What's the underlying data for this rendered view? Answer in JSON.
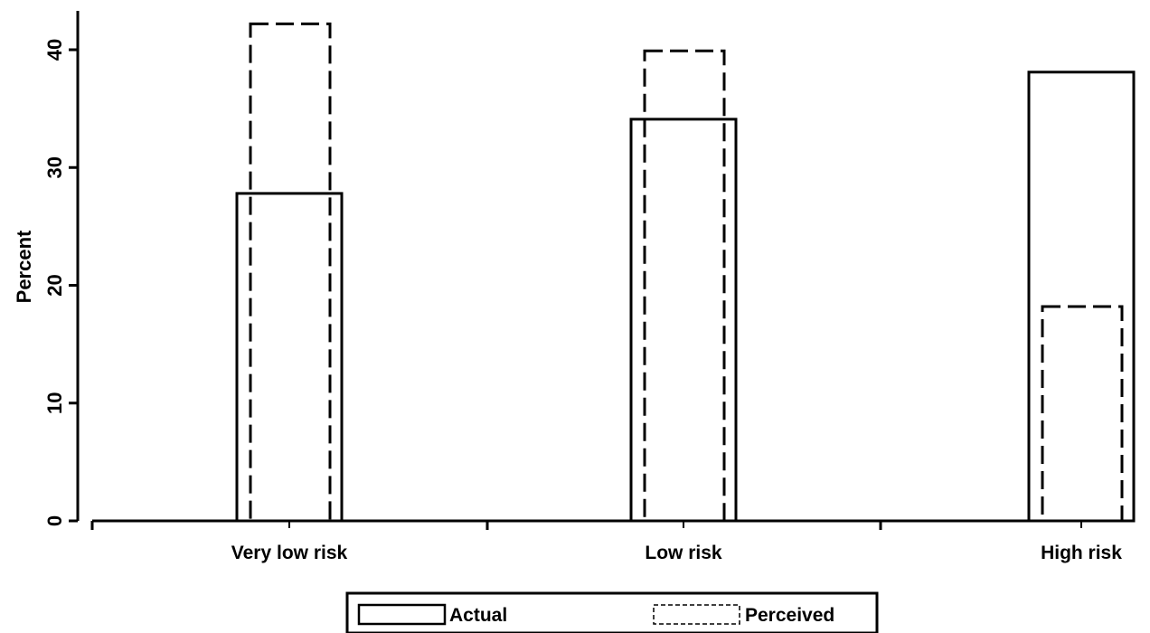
{
  "chart_data": {
    "type": "bar",
    "categories": [
      "Very low risk",
      "Low risk",
      "High risk"
    ],
    "series": [
      {
        "name": "Actual",
        "values": [
          27.8,
          34.1,
          38.1
        ],
        "style": "solid"
      },
      {
        "name": "Perceived",
        "values": [
          42.2,
          39.9,
          18.2
        ],
        "style": "dashed"
      }
    ],
    "xlabel": "",
    "ylabel": "Percent",
    "ylim": [
      0,
      40
    ],
    "yticks": [
      0,
      10,
      20,
      30,
      40
    ],
    "grid": false,
    "legend_position": "bottom"
  },
  "colors": {
    "stroke": "#000000",
    "background": "#ffffff"
  }
}
